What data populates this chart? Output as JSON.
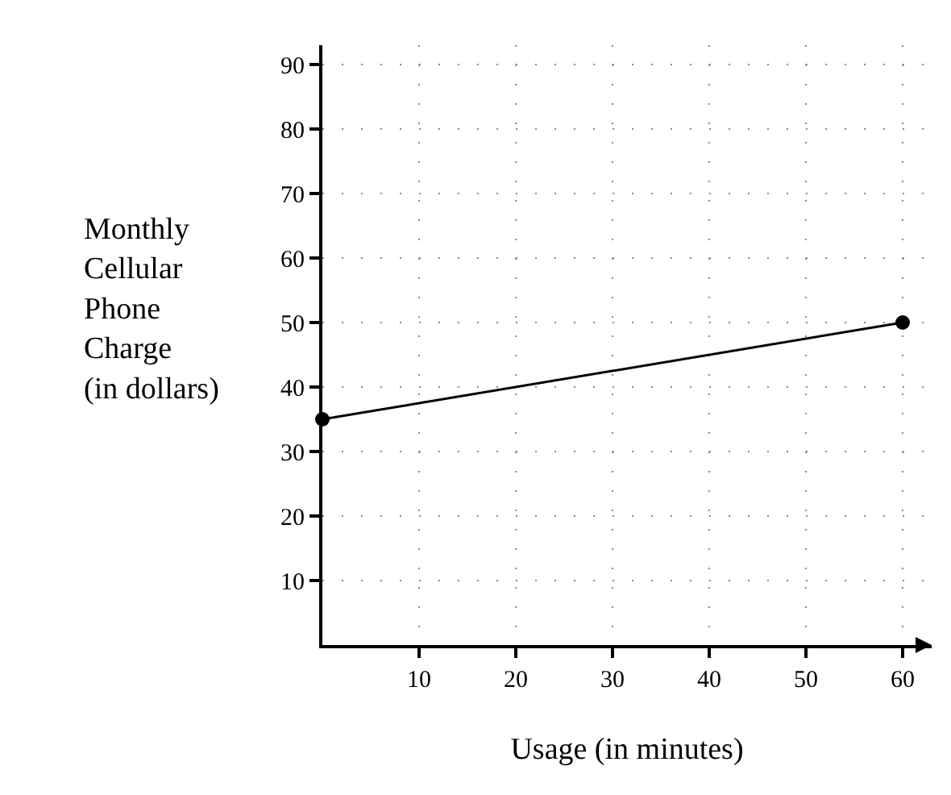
{
  "chart_data": {
    "type": "line",
    "xlabel": "Usage (in minutes)",
    "ylabel": "Monthly\nCellular\nPhone\nCharge\n(in dollars)",
    "x": [
      0,
      60
    ],
    "series": [
      {
        "color": "#000000",
        "values": [
          35,
          50
        ]
      }
    ],
    "xlim": [
      0,
      63
    ],
    "ylim": [
      0,
      93
    ],
    "xticks": [
      10,
      20,
      30,
      40,
      50,
      60
    ],
    "yticks": [
      10,
      20,
      30,
      40,
      50,
      60,
      70,
      80,
      90
    ],
    "grid": true,
    "marker": "circle",
    "line_style": "solid",
    "legend": false
  }
}
